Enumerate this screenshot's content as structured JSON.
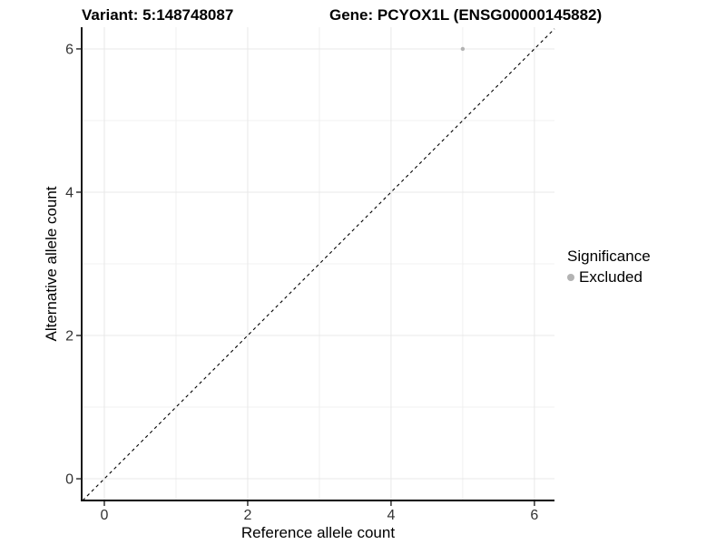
{
  "titles": {
    "variant": "Variant: 5:148748087",
    "gene": "Gene: PCYOX1L (ENSG00000145882)"
  },
  "legend": {
    "title": "Significance",
    "items": [
      {
        "label": "Excluded",
        "color": "#b3b3b3"
      }
    ]
  },
  "chart_data": {
    "type": "scatter",
    "xlabel": "Reference allele count",
    "ylabel": "Alternative allele count",
    "xlim": [
      -0.316,
      6.28
    ],
    "ylim": [
      -0.303,
      6.303
    ],
    "x_ticks": [
      0,
      2,
      4,
      6
    ],
    "y_ticks": [
      0,
      2,
      4,
      6
    ],
    "x_minor_ticks": [
      1,
      3,
      5
    ],
    "y_minor_ticks": [
      1,
      3,
      5
    ],
    "points": [
      {
        "x": 5,
        "y": 6,
        "series": "Excluded",
        "color": "#b3b3b3"
      }
    ],
    "reference_line": {
      "style": "dashed",
      "slope": 1,
      "intercept": 0,
      "color": "#000000"
    },
    "grid": {
      "major_color": "#e8e8e8",
      "minor_color": "#f0f0f0"
    },
    "axis_line_color": "#000000",
    "tick_mark_color": "#333333"
  }
}
